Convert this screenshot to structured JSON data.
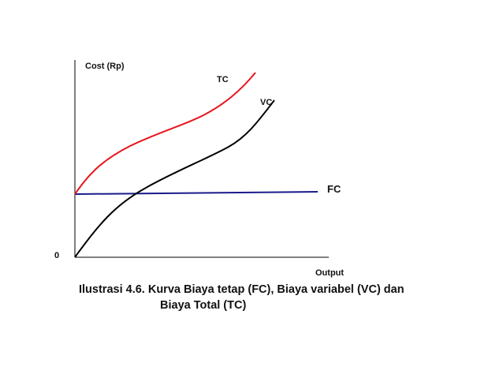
{
  "chart_data": {
    "type": "line",
    "ylabel": "Cost (Rp)",
    "xlabel": "Output",
    "origin_label": "0",
    "series": [
      {
        "name": "TC",
        "color": "#e8141b"
      },
      {
        "name": "VC",
        "color": "#000000"
      },
      {
        "name": "FC",
        "color": "#1a1a8c"
      }
    ]
  },
  "caption": {
    "line1": "Ilustrasi 4.6.  Kurva Biaya tetap (FC), Biaya variabel (VC) dan",
    "line2": "Biaya Total (TC)"
  }
}
